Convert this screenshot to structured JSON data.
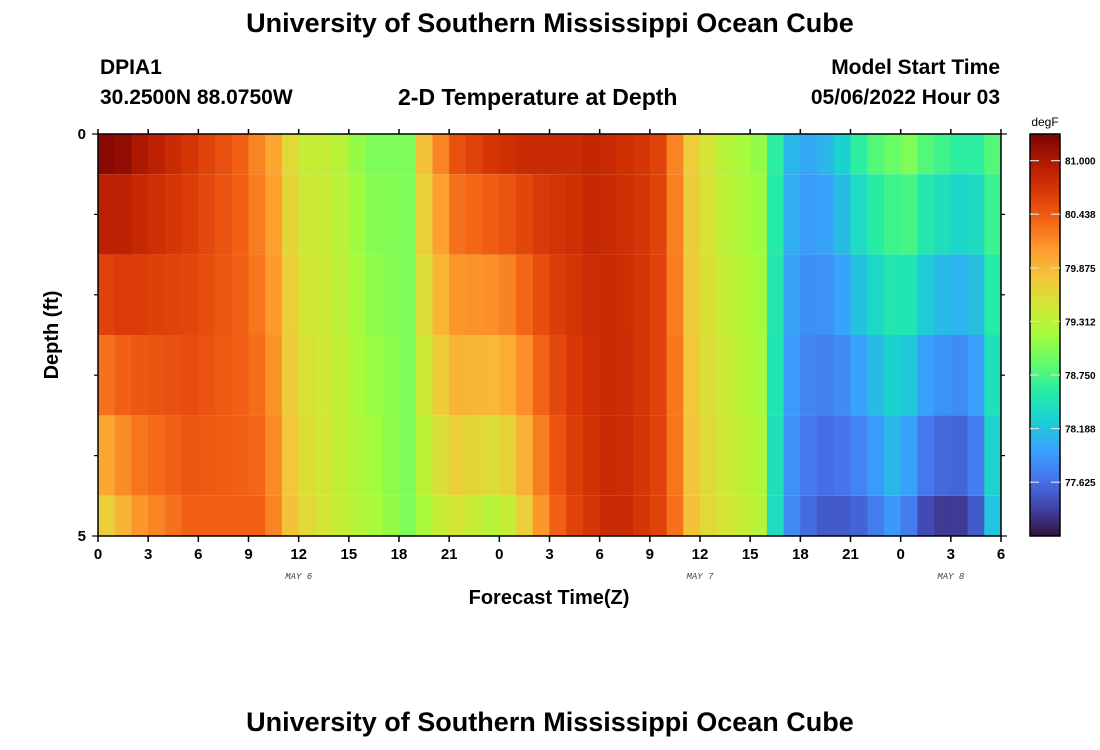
{
  "header": {
    "title": "University of Southern Mississippi Ocean Cube",
    "station_id": "DPIA1",
    "coords": "30.2500N  88.0750W",
    "subtitle": "2-D Temperature at Depth",
    "start_label": "Model Start Time",
    "start_value": "05/06/2022 Hour 03"
  },
  "footer": {
    "title": "University of Southern Mississippi Ocean Cube"
  },
  "chart_data": {
    "type": "heatmap",
    "title": "2-D Temperature at Depth",
    "xlabel": "Forecast Time(Z)",
    "ylabel": "Depth (ft)",
    "x_tick_labels": [
      "0",
      "3",
      "6",
      "9",
      "12",
      "15",
      "18",
      "21",
      "0",
      "3",
      "6",
      "9",
      "12",
      "15",
      "18",
      "21",
      "0",
      "3",
      "6"
    ],
    "date_labels": [
      {
        "label": "MAY 6",
        "hour": 12
      },
      {
        "label": "MAY 7",
        "hour": 36
      },
      {
        "label": "MAY 8",
        "hour": 51
      }
    ],
    "x_range_hours": [
      0,
      54
    ],
    "y_tick_labels": [
      "0",
      "5"
    ],
    "y_range_ft": [
      0,
      5
    ],
    "depth_rows_ft": [
      [
        0,
        0.5
      ],
      [
        0.5,
        1.5
      ],
      [
        1.5,
        2.5
      ],
      [
        2.5,
        3.5
      ],
      [
        3.5,
        4.5
      ],
      [
        4.5,
        5
      ]
    ],
    "profile_hours": [
      0,
      1,
      2,
      3,
      4,
      5,
      6,
      7,
      8,
      9,
      10,
      11,
      12,
      13,
      14,
      15,
      16,
      17,
      18,
      19,
      20,
      21,
      22,
      23,
      24,
      25,
      26,
      27,
      28,
      29,
      30,
      31,
      32,
      33,
      34,
      35,
      36,
      37,
      38,
      39,
      40,
      41,
      42,
      43,
      44,
      45,
      46,
      47,
      48,
      49,
      50,
      51,
      52,
      53,
      54
    ],
    "surface_profile_degF": [
      81.2,
      81.15,
      81.0,
      80.9,
      80.8,
      80.7,
      80.6,
      80.5,
      80.4,
      80.2,
      80.0,
      79.6,
      79.4,
      79.4,
      79.3,
      79.1,
      79.0,
      79.0,
      79.0,
      79.8,
      80.2,
      80.5,
      80.6,
      80.7,
      80.75,
      80.8,
      80.8,
      80.8,
      80.8,
      80.85,
      80.8,
      80.75,
      80.7,
      80.6,
      80.2,
      79.7,
      79.5,
      79.3,
      79.2,
      79.1,
      78.6,
      78.1,
      78.0,
      78.1,
      78.3,
      78.6,
      78.8,
      78.9,
      79.0,
      78.8,
      78.7,
      78.6,
      78.6,
      78.8,
      79.3
    ],
    "bottom_profile_degF": [
      79.7,
      79.9,
      80.1,
      80.2,
      80.3,
      80.4,
      80.4,
      80.4,
      80.4,
      80.4,
      80.2,
      79.8,
      79.6,
      79.5,
      79.4,
      79.3,
      79.2,
      79.1,
      79.0,
      79.2,
      79.4,
      79.5,
      79.4,
      79.3,
      79.4,
      79.7,
      80.1,
      80.4,
      80.6,
      80.7,
      80.8,
      80.8,
      80.7,
      80.6,
      80.3,
      79.8,
      79.6,
      79.5,
      79.4,
      79.3,
      78.4,
      77.8,
      77.6,
      77.5,
      77.5,
      77.55,
      77.7,
      77.9,
      77.7,
      77.4,
      77.3,
      77.3,
      77.5,
      78.2,
      79.1
    ],
    "colorbar": {
      "unit": "degF",
      "min": 77.06,
      "max": 81.28,
      "tick_values": [
        81.0,
        80.438,
        79.875,
        79.312,
        78.75,
        78.188,
        77.625
      ],
      "tick_labels": [
        "81.000",
        "80.438",
        "79.875",
        "79.312",
        "78.750",
        "78.188",
        "77.625"
      ],
      "colors": [
        "#30123b",
        "#4145ab",
        "#4675ed",
        "#39a2fc",
        "#1bcfd4",
        "#24eca6",
        "#61fc6c",
        "#a4fc3b",
        "#d1e834",
        "#f3c63a",
        "#fe9b2d",
        "#f36315",
        "#d93806",
        "#b11901",
        "#7a0402"
      ]
    }
  }
}
